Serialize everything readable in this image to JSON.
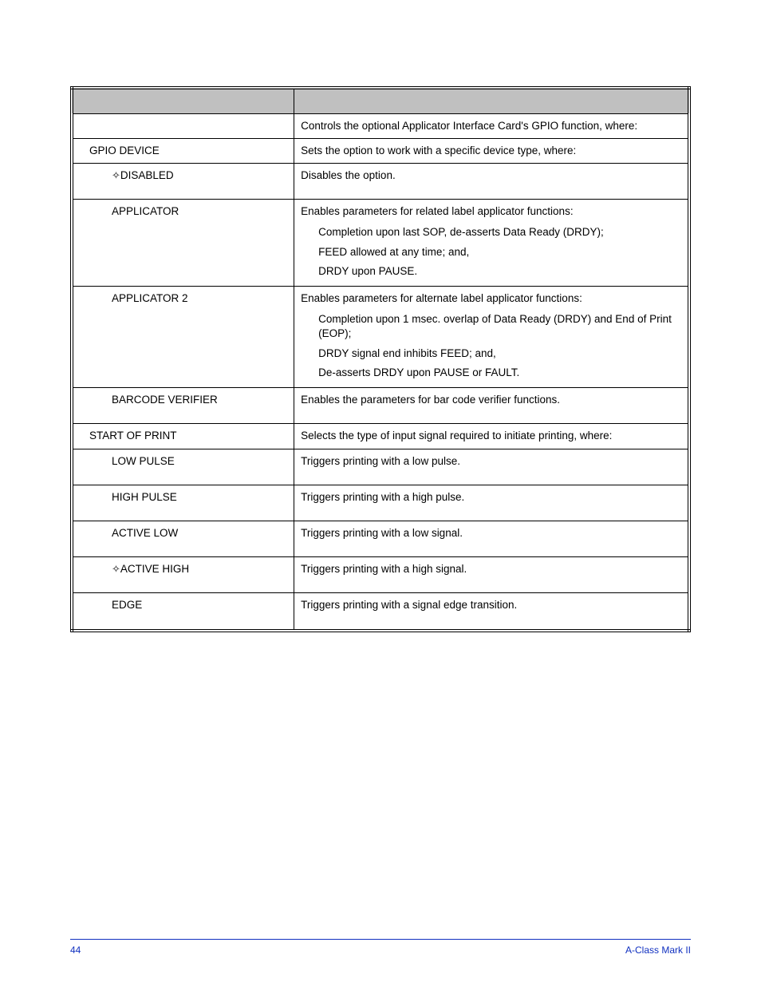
{
  "table": {
    "intro": "Controls the optional Applicator Interface Card's GPIO function, where:",
    "rows": [
      {
        "label": "GPIO DEVICE",
        "indent": 1,
        "desc": "Sets the option to work with a specific device type, where:"
      },
      {
        "label": "DISABLED",
        "prefix": "✧",
        "indent": 2,
        "desc": "Disables the option.",
        "tall": true
      },
      {
        "label": "APPLICATOR",
        "indent": 2,
        "desc": "Enables parameters for related label applicator functions:",
        "sub": [
          "Completion upon last SOP, de-asserts Data Ready (DRDY);",
          "FEED allowed at any time; and,",
          "DRDY upon PAUSE."
        ]
      },
      {
        "label": "APPLICATOR 2",
        "indent": 2,
        "desc": "Enables parameters for alternate label applicator functions:",
        "sub": [
          "Completion upon 1 msec. overlap of Data Ready (DRDY) and End of Print (EOP);",
          "DRDY signal end inhibits FEED; and,",
          "De-asserts DRDY upon PAUSE or FAULT."
        ]
      },
      {
        "label": "BARCODE VERIFIER",
        "indent": 2,
        "desc": "Enables the parameters for bar code verifier functions.",
        "tall": true
      },
      {
        "label": "START OF PRINT",
        "indent": 1,
        "desc": "Selects the type of input signal required to initiate printing, where:"
      },
      {
        "label": "LOW PULSE",
        "indent": 2,
        "desc": "Triggers printing with a low pulse.",
        "tall": true
      },
      {
        "label": "HIGH PULSE",
        "indent": 2,
        "desc": "Triggers printing with a high pulse.",
        "tall": true
      },
      {
        "label": "ACTIVE LOW",
        "indent": 2,
        "desc": "Triggers printing with a low signal.",
        "tall": true
      },
      {
        "label": "ACTIVE HIGH",
        "prefix": "✧",
        "indent": 2,
        "desc": "Triggers printing with a high signal.",
        "tall": true
      },
      {
        "label": "EDGE",
        "indent": 2,
        "desc": "Triggers printing with a signal edge transition.",
        "tall": true
      }
    ]
  },
  "footer": {
    "page_number": "44",
    "doc_title": "A-Class Mark II"
  }
}
